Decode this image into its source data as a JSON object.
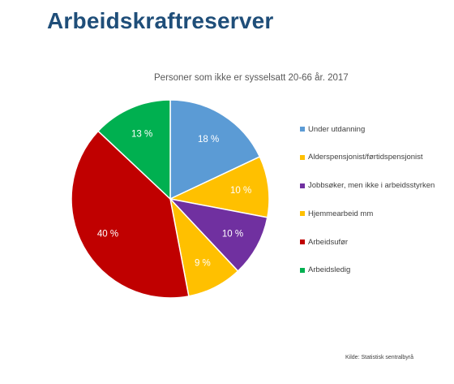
{
  "slide": {
    "title": "Arbeidskraftreserver",
    "source": "Kilde: Statistisk sentralbyrå"
  },
  "chart_data": {
    "type": "pie",
    "title": "Personer som ikke er sysselsatt 20-66 år. 2017",
    "categories": [
      "Under utdanning",
      "Alderspensjonist/førtidspensjonist",
      "Jobbsøker, men ikke i arbeidsstyrken",
      "Hjemmearbeid mm",
      "Arbeidsufør",
      "Arbeidsledig"
    ],
    "values": [
      18,
      10,
      10,
      9,
      40,
      13
    ],
    "data_labels": [
      "18 %",
      "10 %",
      "10 %",
      "9 %",
      "40 %",
      "13 %"
    ],
    "colors": [
      "#5b9bd5",
      "#ffc000",
      "#7030a0",
      "#ffc000",
      "#c00000",
      "#00b050"
    ],
    "label_color": "#ffffff",
    "legend_position": "right",
    "start_angle": "12 o'clock, clockwise"
  }
}
